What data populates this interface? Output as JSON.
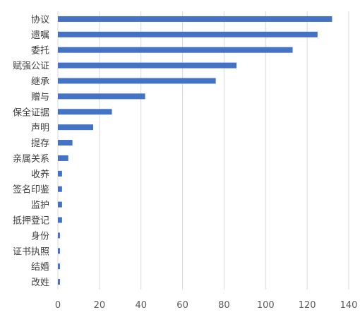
{
  "chart_data": {
    "type": "bar",
    "orientation": "horizontal",
    "title": "",
    "xlabel": "",
    "ylabel": "",
    "categories": [
      "协议",
      "遗嘱",
      "委托",
      "赋强公证",
      "继承",
      "赠与",
      "保全证据",
      "声明",
      "提存",
      "亲属关系",
      "收养",
      "签名印鉴",
      "监护",
      "抵押登记",
      "身份",
      "证书执照",
      "结婚",
      "改姓"
    ],
    "values": [
      132,
      125,
      113,
      86,
      76,
      42,
      26,
      17,
      7,
      5,
      2,
      2,
      2,
      2,
      1,
      1,
      1,
      1
    ],
    "xlim": [
      0,
      140
    ],
    "xticks": [
      0,
      20,
      40,
      60,
      80,
      100,
      120,
      140
    ],
    "grid": "vertical",
    "legend": "none",
    "bar_color": "#4472C4",
    "grid_color": "#D9D9D9"
  }
}
